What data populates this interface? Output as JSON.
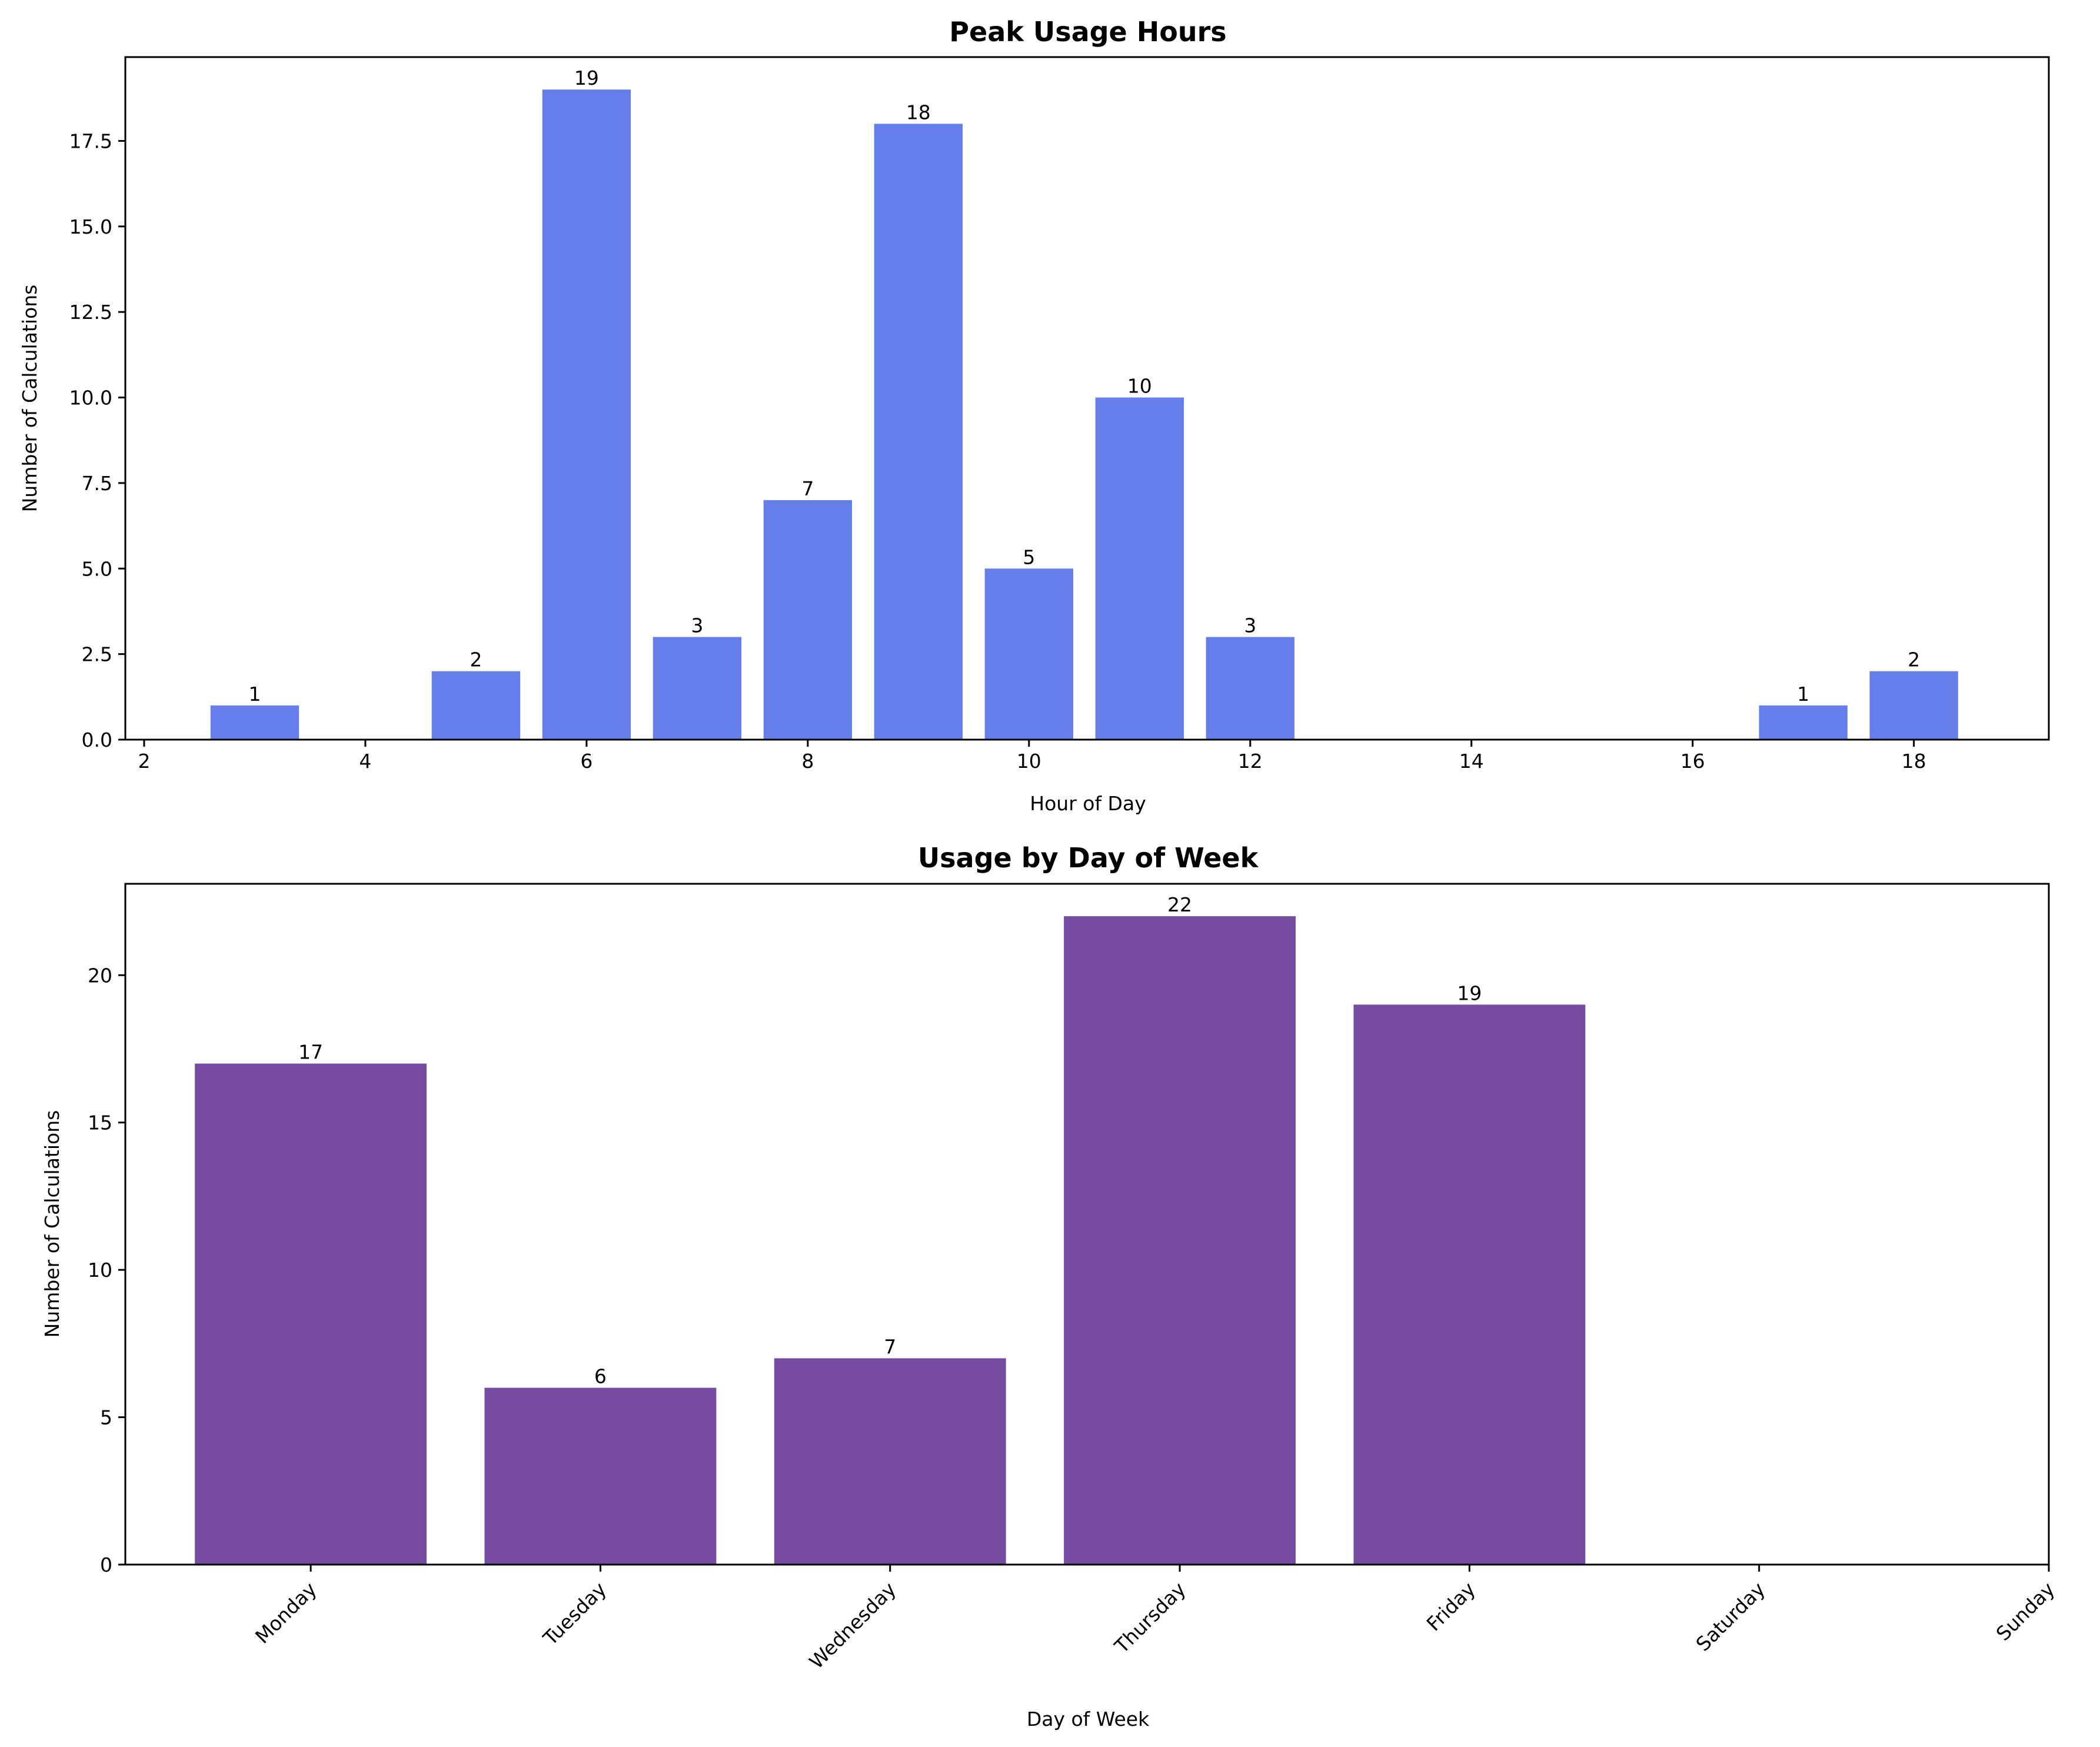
{
  "chart_data": [
    {
      "type": "bar",
      "title": "Peak Usage Hours",
      "xlabel": "Hour of Day",
      "ylabel": "Number of Calculations",
      "x": [
        3,
        5,
        6,
        7,
        8,
        9,
        10,
        11,
        12,
        17,
        18
      ],
      "values": [
        1,
        2,
        19,
        3,
        7,
        18,
        5,
        10,
        3,
        1,
        2
      ],
      "xlim": [
        1.83,
        19.22
      ],
      "ylim": [
        0,
        19.95
      ],
      "xticks": [
        "2",
        "4",
        "6",
        "8",
        "10",
        "12",
        "14",
        "16",
        "18"
      ],
      "yticks": [
        "0.0",
        "2.5",
        "5.0",
        "7.5",
        "10.0",
        "12.5",
        "15.0",
        "17.5"
      ],
      "color": "#667eea",
      "grid": false
    },
    {
      "type": "bar",
      "title": "Usage by Day of Week",
      "xlabel": "Day of Week",
      "ylabel": "Number of Calculations",
      "categories": [
        "Monday",
        "Tuesday",
        "Wednesday",
        "Thursday",
        "Friday",
        "Saturday",
        "Sunday"
      ],
      "values": [
        17,
        6,
        7,
        22,
        19,
        0,
        0
      ],
      "xlim": [
        -0.64,
        6
      ],
      "ylim": [
        0,
        23.1
      ],
      "yticks": [
        "0",
        "5",
        "10",
        "15",
        "20"
      ],
      "color": "#764ba2",
      "grid": false
    }
  ]
}
